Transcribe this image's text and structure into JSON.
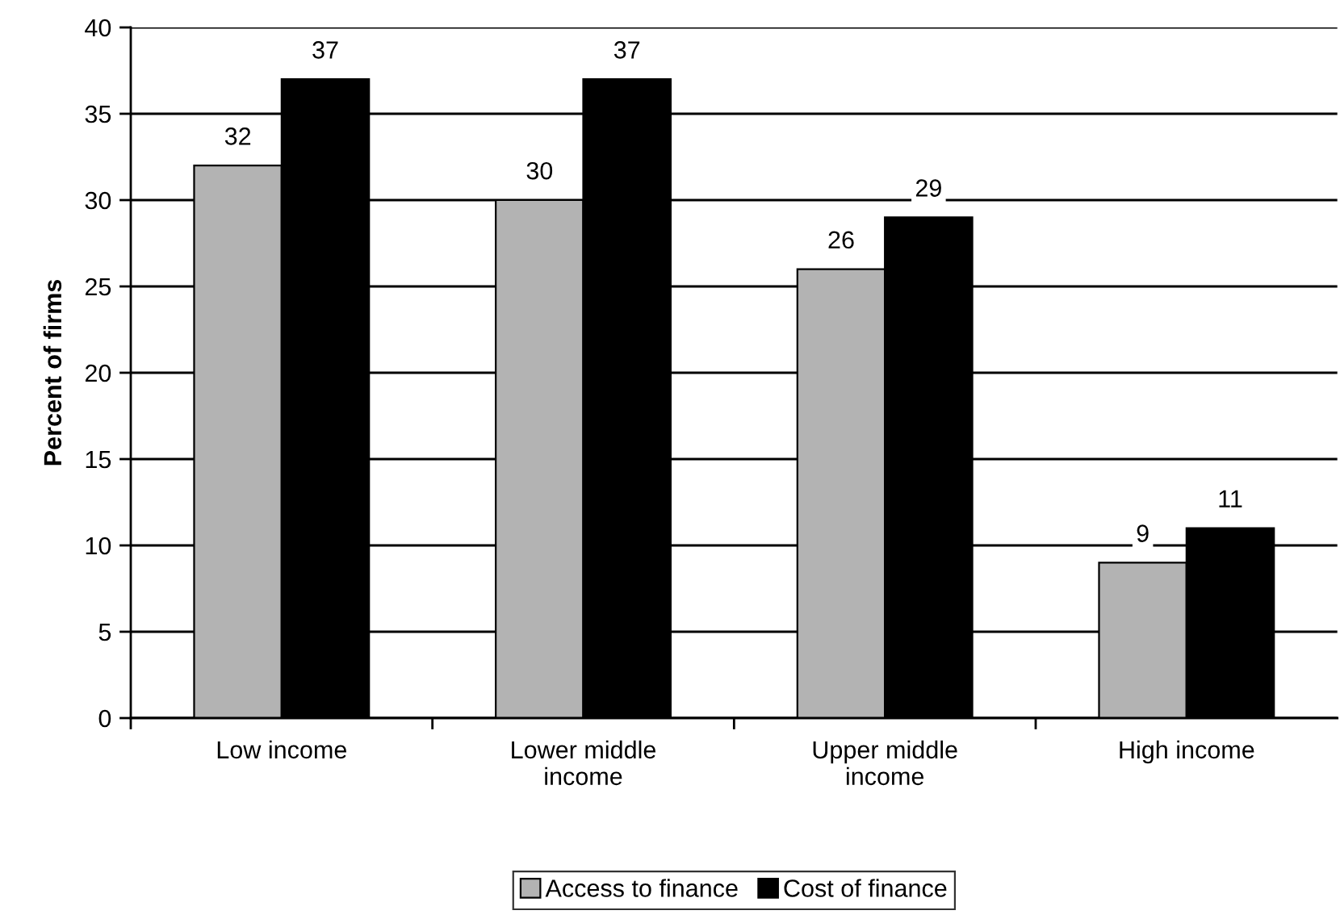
{
  "chart_data": {
    "type": "bar",
    "ylabel": "Percent of firms",
    "categories": [
      "Low income",
      "Lower middle\nincome",
      "Upper middle\nincome",
      "High income"
    ],
    "series": [
      {
        "name": "Access to finance",
        "color": "#b3b3b3",
        "values": [
          32,
          30,
          26,
          9
        ]
      },
      {
        "name": "Cost of finance",
        "color": "#000000",
        "values": [
          37,
          37,
          29,
          11
        ]
      }
    ],
    "ylim": [
      0,
      40
    ],
    "yticks": [
      0,
      5,
      10,
      15,
      20,
      25,
      30,
      35,
      40
    ],
    "grid": "y",
    "legend": "bottom",
    "data_labels": true
  }
}
